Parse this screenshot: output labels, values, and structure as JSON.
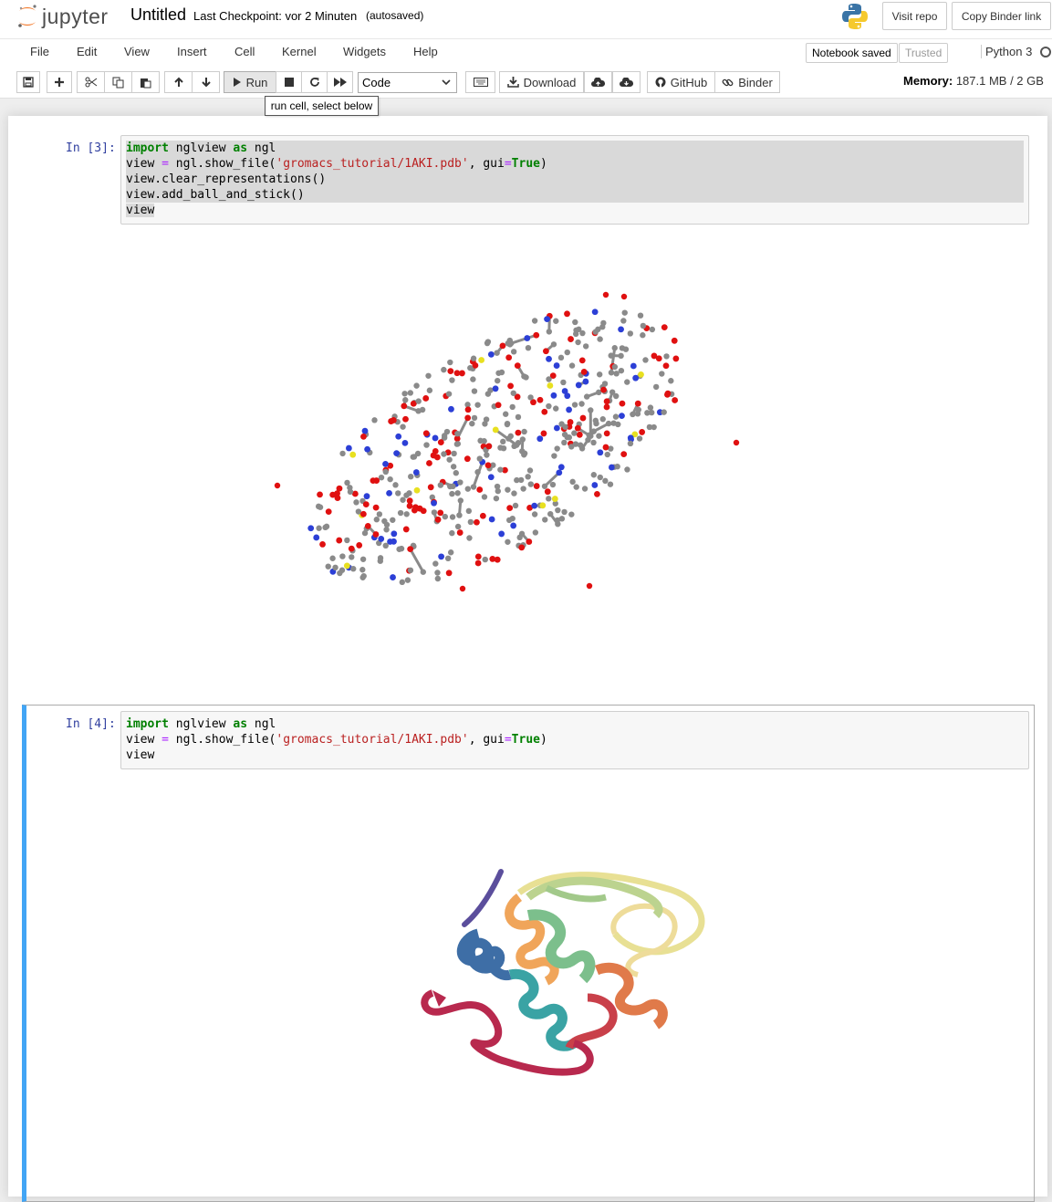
{
  "header": {
    "logo_text": "jupyter",
    "notebook_title": "Untitled",
    "checkpoint": "Last Checkpoint: vor 2 Minuten",
    "autosave": "(autosaved)",
    "visit_repo": "Visit repo",
    "copy_binder_link": "Copy Binder link"
  },
  "menubar": {
    "items": [
      "File",
      "Edit",
      "View",
      "Insert",
      "Cell",
      "Kernel",
      "Widgets",
      "Help"
    ],
    "notebook_saved": "Notebook saved",
    "trusted": "Trusted",
    "kernel_name": "Python 3"
  },
  "toolbar": {
    "run_label": "Run",
    "cell_type": "Code",
    "download_label": "Download",
    "github_label": "GitHub",
    "binder_label": "Binder",
    "memory_label": "Memory:",
    "memory_value": "187.1 MB / 2 GB",
    "tooltip": "run cell, select below"
  },
  "cells": [
    {
      "prompt": "In [3]:",
      "lines": [
        "import nglview as ngl",
        "view = ngl.show_file('gromacs_tutorial/1AKI.pdb', gui=True)",
        "view.clear_representations()",
        "view.add_ball_and_stick()",
        "view"
      ],
      "output": "ball-and-stick molecular view"
    },
    {
      "prompt": "In [4]:",
      "lines": [
        "import nglview as ngl",
        "view = ngl.show_file('gromacs_tutorial/1AKI.pdb', gui=True)",
        "view"
      ],
      "output": "cartoon molecular view"
    }
  ],
  "colors": {
    "prompt": "#303f9f",
    "selected_cell_bar": "#42a5f5",
    "keyword": "#008000",
    "string": "#ba2121",
    "atom_oxygen": "#e01010",
    "atom_nitrogen": "#2c3fd6",
    "atom_sulfur": "#e8e020",
    "atom_carbon": "#8a8a8a"
  }
}
